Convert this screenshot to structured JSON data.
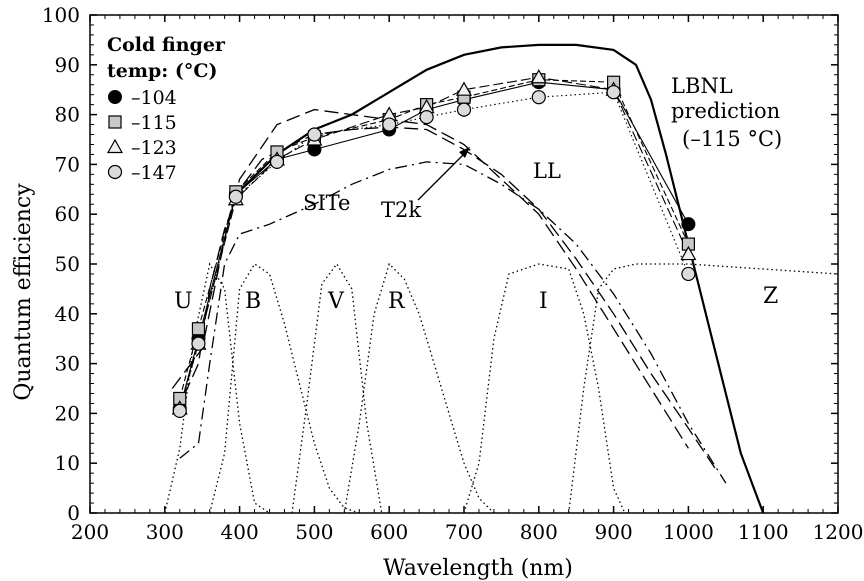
{
  "chart_data": {
    "type": "line",
    "xlabel": "Wavelength (nm)",
    "ylabel": "Quantum efficiency",
    "xlim": [
      200,
      1200
    ],
    "ylim": [
      0,
      100
    ],
    "xticks": [
      200,
      300,
      400,
      500,
      600,
      700,
      800,
      900,
      1000,
      1100,
      1200
    ],
    "yticks": [
      0,
      10,
      20,
      30,
      40,
      50,
      60,
      70,
      80,
      90,
      100
    ],
    "grid": false,
    "legend": {
      "title_line1": "Cold finger",
      "title_line2": "temp: (°C)",
      "placement": "top-left"
    },
    "measured_series": [
      {
        "name": "–104",
        "marker": "filled-circle",
        "x": [
          320,
          345,
          395,
          450,
          500,
          600,
          650,
          700,
          800,
          900,
          1000
        ],
        "y": [
          21,
          35,
          64,
          71,
          73,
          77,
          81,
          83,
          86.5,
          85,
          58
        ]
      },
      {
        "name": "–115",
        "marker": "square",
        "x": [
          320,
          345,
          395,
          450,
          500,
          600,
          650,
          700,
          800,
          900,
          1000
        ],
        "y": [
          23,
          37,
          64.5,
          72.5,
          75.5,
          79,
          82,
          83.5,
          87,
          86.5,
          54
        ]
      },
      {
        "name": "–123",
        "marker": "triangle",
        "x": [
          320,
          345,
          395,
          450,
          500,
          600,
          650,
          700,
          800,
          900,
          1000
        ],
        "y": [
          21,
          34,
          63,
          71,
          75,
          80,
          81.5,
          85,
          87.5,
          85,
          52
        ]
      },
      {
        "name": "–147",
        "marker": "open-circle",
        "x": [
          320,
          345,
          395,
          450,
          500,
          600,
          650,
          700,
          800,
          900,
          1000
        ],
        "y": [
          20.5,
          34,
          63.5,
          70.5,
          76,
          78,
          79.5,
          81,
          83.5,
          84.5,
          48
        ]
      }
    ],
    "model_curves": [
      {
        "name": "LBNL prediction (–115 °C)",
        "style": "solid",
        "x": [
          395,
          450,
          500,
          550,
          600,
          650,
          700,
          750,
          800,
          850,
          900,
          930,
          950,
          970,
          990,
          1010,
          1030,
          1050,
          1070,
          1090,
          1100
        ],
        "y": [
          64,
          72,
          77,
          80,
          84.5,
          89,
          92,
          93.5,
          94,
          94,
          93,
          90,
          83,
          72,
          60,
          48,
          36,
          24,
          12,
          4,
          0
        ]
      },
      {
        "name": "SITe",
        "style": "long-dash",
        "x": [
          310,
          350,
          380,
          400,
          450,
          500,
          550,
          600,
          650,
          700,
          750,
          800,
          850,
          900,
          950,
          1000
        ],
        "y": [
          25,
          33,
          55,
          67,
          78,
          81,
          80,
          79,
          78,
          74,
          67,
          60,
          49,
          37,
          25,
          13
        ]
      },
      {
        "name": "T2k",
        "style": "long-dash",
        "x": [
          315,
          345,
          360,
          380,
          400,
          430,
          470,
          500,
          550,
          600,
          650,
          700,
          750,
          800,
          850,
          900,
          950,
          1000,
          1040
        ],
        "y": [
          20,
          30,
          45,
          57,
          65,
          71,
          74,
          76,
          77,
          77.5,
          77,
          73,
          68,
          61,
          51,
          40,
          28,
          17,
          8
        ]
      },
      {
        "name": "LL",
        "style": "dash-dot",
        "x": [
          320,
          345,
          360,
          380,
          400,
          440,
          500,
          550,
          600,
          650,
          700,
          750,
          800,
          850,
          900,
          950,
          1000,
          1050
        ],
        "y": [
          11,
          14,
          30,
          50,
          56,
          58,
          62,
          66,
          69,
          70.5,
          70,
          66,
          61,
          54,
          44,
          32,
          18,
          6
        ]
      }
    ],
    "filter_curves": [
      {
        "name": "U",
        "x": [
          300,
          320,
          340,
          360,
          380,
          400,
          420,
          440
        ],
        "y": [
          0,
          13,
          36,
          50,
          45,
          18,
          2,
          0
        ]
      },
      {
        "name": "B",
        "x": [
          360,
          380,
          400,
          420,
          440,
          460,
          480,
          500,
          520,
          540,
          560
        ],
        "y": [
          0,
          12,
          45,
          50,
          48,
          38,
          26,
          14,
          5,
          1,
          0
        ]
      },
      {
        "name": "V",
        "x": [
          470,
          490,
          510,
          530,
          550,
          570,
          590
        ],
        "y": [
          0,
          22,
          46,
          50,
          45,
          18,
          0
        ]
      },
      {
        "name": "R",
        "x": [
          540,
          560,
          580,
          600,
          620,
          640,
          660,
          680,
          700,
          720,
          740
        ],
        "y": [
          0,
          18,
          40,
          50,
          47,
          40,
          30,
          20,
          10,
          3,
          0
        ]
      },
      {
        "name": "I",
        "x": [
          700,
          720,
          740,
          760,
          800,
          840,
          860,
          880,
          900,
          915
        ],
        "y": [
          0,
          10,
          35,
          48,
          50,
          49,
          40,
          25,
          5,
          0
        ]
      },
      {
        "name": "Z",
        "x": [
          840,
          860,
          880,
          900,
          930,
          960,
          1000,
          1050,
          1100,
          1150,
          1200
        ],
        "y": [
          0,
          25,
          45,
          49,
          50,
          50,
          50,
          49.5,
          49,
          48.5,
          48
        ]
      }
    ],
    "curve_labels": [
      "SITe",
      "T2k",
      "LL"
    ],
    "band_labels": [
      "U",
      "B",
      "V",
      "R",
      "I",
      "Z"
    ],
    "annotation_line1": "LBNL",
    "annotation_line2": "prediction",
    "annotation_line3": "(–115 °C)"
  }
}
